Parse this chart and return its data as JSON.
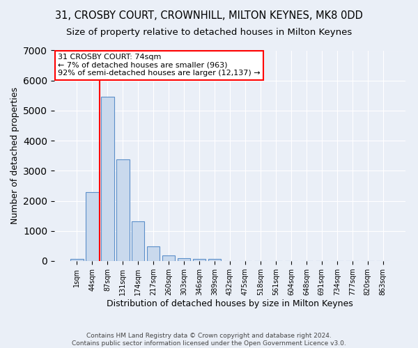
{
  "title": "31, CROSBY COURT, CROWNHILL, MILTON KEYNES, MK8 0DD",
  "subtitle": "Size of property relative to detached houses in Milton Keynes",
  "xlabel": "Distribution of detached houses by size in Milton Keynes",
  "ylabel": "Number of detached properties",
  "footer_line1": "Contains HM Land Registry data © Crown copyright and database right 2024.",
  "footer_line2": "Contains public sector information licensed under the Open Government Licence v3.0.",
  "bar_labels": [
    "1sqm",
    "44sqm",
    "87sqm",
    "131sqm",
    "174sqm",
    "217sqm",
    "260sqm",
    "303sqm",
    "346sqm",
    "389sqm",
    "432sqm",
    "475sqm",
    "518sqm",
    "561sqm",
    "604sqm",
    "648sqm",
    "691sqm",
    "734sqm",
    "777sqm",
    "820sqm",
    "863sqm"
  ],
  "bar_values": [
    75,
    2280,
    5460,
    3380,
    1310,
    490,
    175,
    90,
    70,
    60,
    0,
    0,
    0,
    0,
    0,
    0,
    0,
    0,
    0,
    0,
    0
  ],
  "bar_color": "#c9d9ed",
  "bar_edge_color": "#5b8fc9",
  "vline_x_idx": 1,
  "vline_color": "red",
  "annotation_title": "31 CROSBY COURT: 74sqm",
  "annotation_line1": "← 7% of detached houses are smaller (963)",
  "annotation_line2": "92% of semi-detached houses are larger (12,137) →",
  "annotation_box_color": "white",
  "annotation_box_edge": "red",
  "ylim": [
    0,
    7000
  ],
  "yticks": [
    0,
    1000,
    2000,
    3000,
    4000,
    5000,
    6000,
    7000
  ],
  "bg_color": "#eaeff7",
  "plot_bg_color": "#eaeff7",
  "grid_color": "white",
  "title_fontsize": 10.5,
  "subtitle_fontsize": 9.5,
  "ylabel_fontsize": 9,
  "xlabel_fontsize": 9,
  "tick_fontsize": 7,
  "annot_fontsize": 8,
  "footer_fontsize": 6.5
}
